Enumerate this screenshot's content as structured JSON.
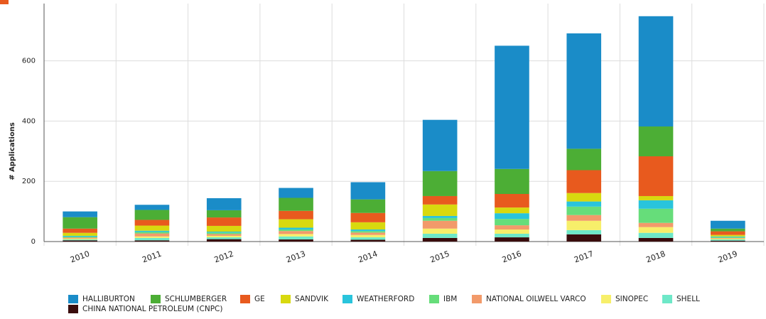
{
  "chart_data": {
    "type": "stacked-bar",
    "y_label": "# Applications",
    "categories": [
      "2010",
      "2011",
      "2012",
      "2013",
      "2014",
      "2015",
      "2016",
      "2017",
      "2018",
      "2019"
    ],
    "ylim": [
      0,
      790
    ],
    "yticks": [
      0,
      200,
      400,
      600
    ],
    "grid": true,
    "series": [
      {
        "name": "HALLIBURTON",
        "color": "#1a8cc8",
        "values": [
          19,
          17,
          40,
          33,
          57,
          170,
          409,
          383,
          366,
          26
        ]
      },
      {
        "name": "SCHLUMBERGER",
        "color": "#4cae35",
        "values": [
          38,
          33,
          24,
          43,
          45,
          83,
          83,
          71,
          99,
          9
        ]
      },
      {
        "name": "GE",
        "color": "#e85a1e",
        "values": [
          14,
          19,
          28,
          28,
          31,
          28,
          45,
          76,
          132,
          12
        ]
      },
      {
        "name": "SANDVIK",
        "color": "#d8d90f",
        "values": [
          10,
          17,
          19,
          28,
          24,
          38,
          19,
          28,
          14,
          5
        ]
      },
      {
        "name": "WEATHERFORD",
        "color": "#29c4dc",
        "values": [
          3,
          4,
          3,
          6,
          5,
          7,
          19,
          17,
          28,
          2
        ]
      },
      {
        "name": "IBM",
        "color": "#66dd7a",
        "values": [
          3,
          5,
          5,
          5,
          5,
          9,
          21,
          28,
          47,
          3
        ]
      },
      {
        "name": "NATIONAL OILWELL VARCO",
        "color": "#f29a6a",
        "values": [
          3,
          10,
          6,
          10,
          8,
          26,
          14,
          19,
          14,
          2
        ]
      },
      {
        "name": "SINOPEC",
        "color": "#f7ef6a",
        "values": [
          3,
          5,
          5,
          8,
          8,
          17,
          14,
          31,
          19,
          3
        ]
      },
      {
        "name": "SHELL",
        "color": "#6ee8c8",
        "values": [
          3,
          8,
          6,
          10,
          8,
          14,
          12,
          14,
          17,
          4
        ]
      },
      {
        "name": "CHINA NATIONAL PETROLEUM (CNPC)",
        "color": "#3a0d0d",
        "values": [
          4,
          4,
          8,
          7,
          6,
          12,
          14,
          24,
          12,
          3
        ]
      }
    ]
  }
}
